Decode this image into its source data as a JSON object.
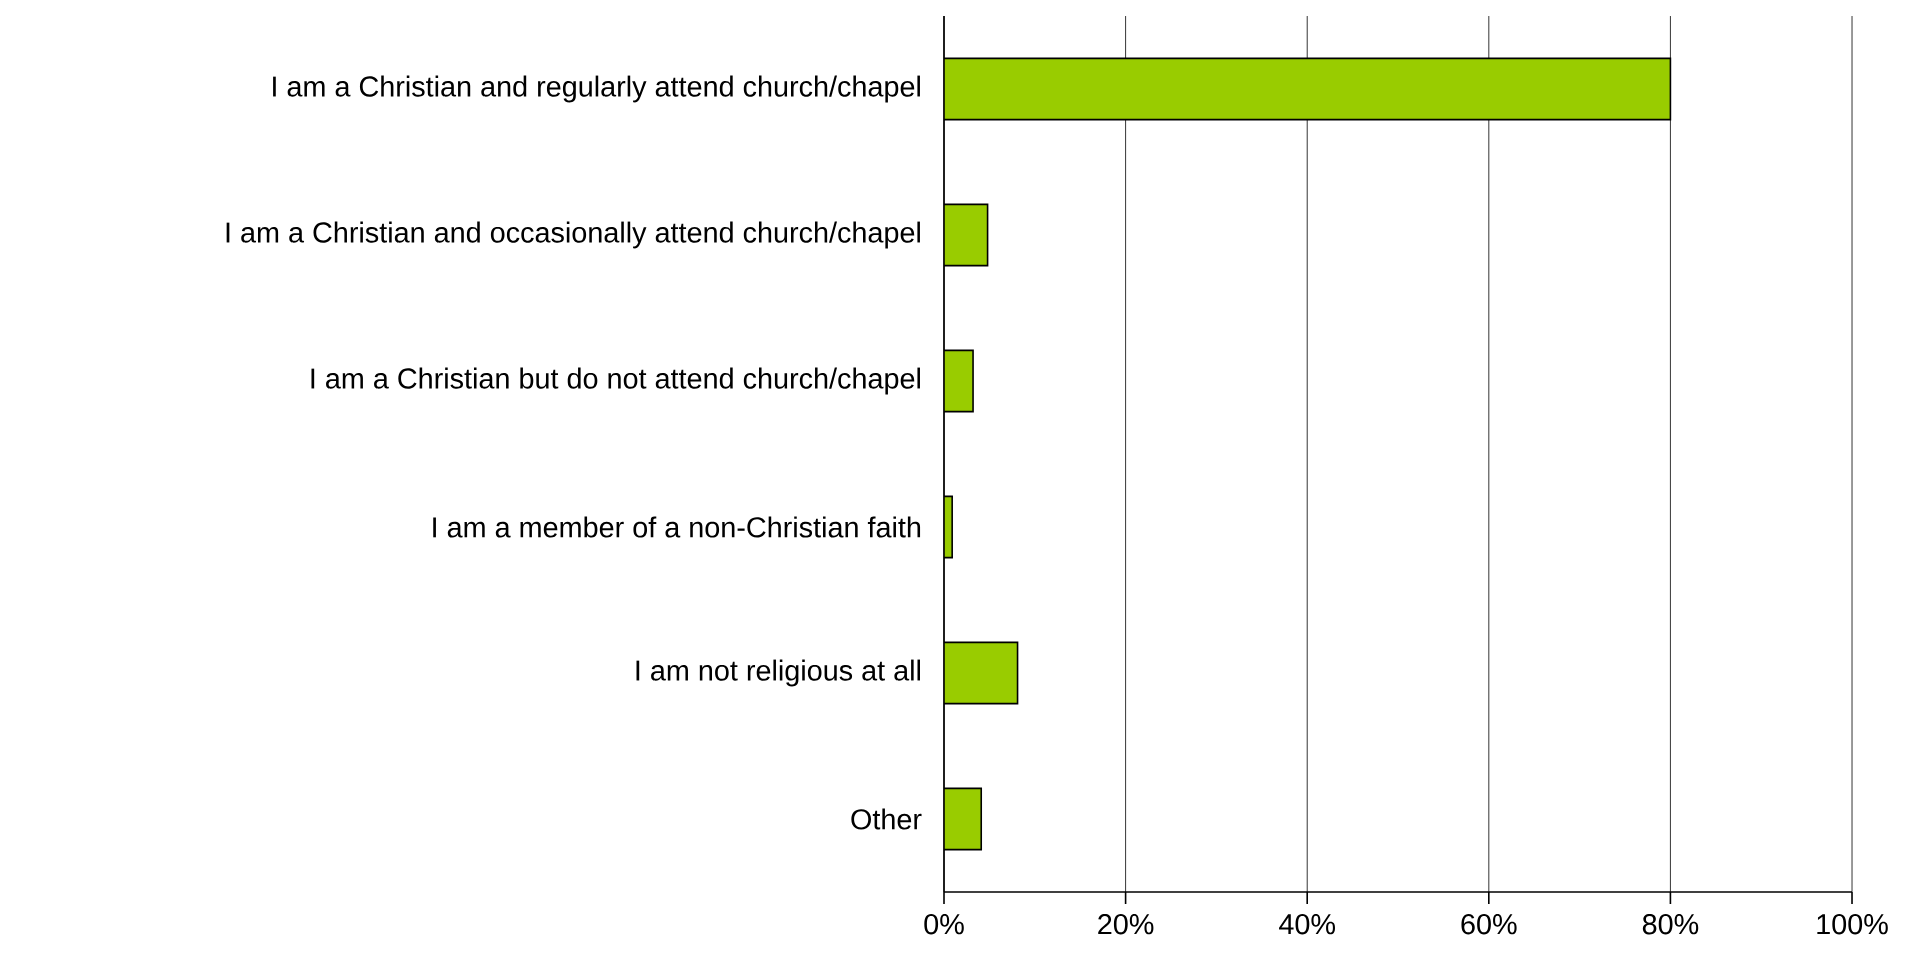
{
  "chart_data": {
    "type": "bar",
    "orientation": "horizontal",
    "categories": [
      "I am a Christian and regularly attend church/chapel",
      "I am a Christian and occasionally attend church/chapel",
      "I am a Christian but do not attend church/chapel",
      "I am a member of a non-Christian faith",
      "I am not religious at all",
      "Other"
    ],
    "values": [
      80,
      4.8,
      3.2,
      0.9,
      8.1,
      4.1
    ],
    "color": "#99cc00",
    "xlim": [
      0,
      100
    ],
    "xticks": [
      {
        "value": 0,
        "label": "0%"
      },
      {
        "value": 20,
        "label": "20%"
      },
      {
        "value": 40,
        "label": "40%"
      },
      {
        "value": 60,
        "label": "60%"
      },
      {
        "value": 80,
        "label": "80%"
      },
      {
        "value": 100,
        "label": "100%"
      }
    ],
    "grid": "x"
  }
}
